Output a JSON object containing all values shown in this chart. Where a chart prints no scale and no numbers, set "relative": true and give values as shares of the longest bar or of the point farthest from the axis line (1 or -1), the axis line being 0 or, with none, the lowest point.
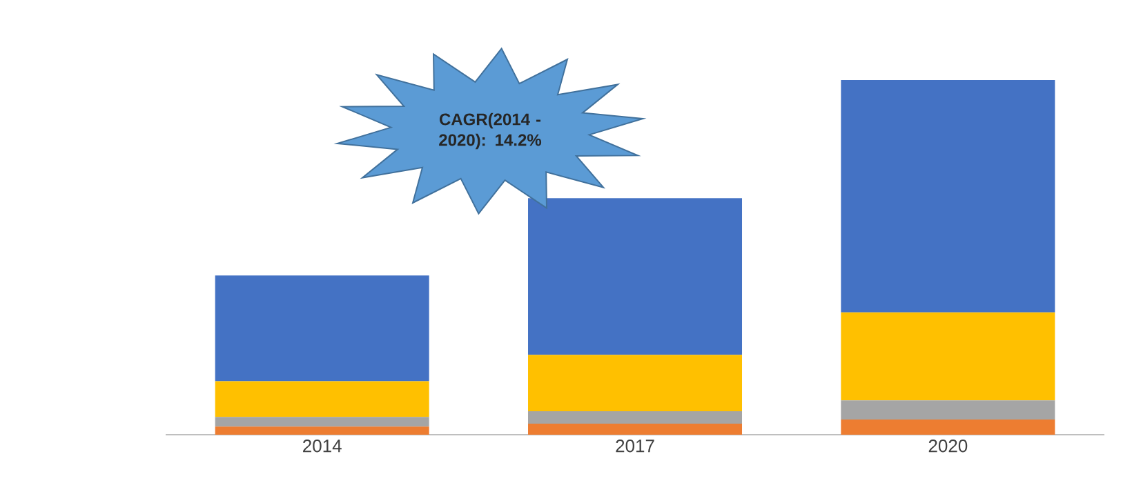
{
  "chart_data": {
    "type": "bar",
    "stacked": true,
    "relative": true,
    "categories": [
      "2014",
      "2017",
      "2020"
    ],
    "series": [
      {
        "color": "#ed7d31",
        "values": [
          0.023,
          0.031,
          0.043
        ]
      },
      {
        "color": "#a5a5a5",
        "values": [
          0.027,
          0.035,
          0.054
        ]
      },
      {
        "color": "#ffc000",
        "values": [
          0.101,
          0.159,
          0.248
        ]
      },
      {
        "color": "#4472c4",
        "values": [
          0.298,
          0.442,
          0.655
        ]
      }
    ],
    "annotations": [
      "CAGR(2014 - 2020): 14.2%"
    ]
  }
}
